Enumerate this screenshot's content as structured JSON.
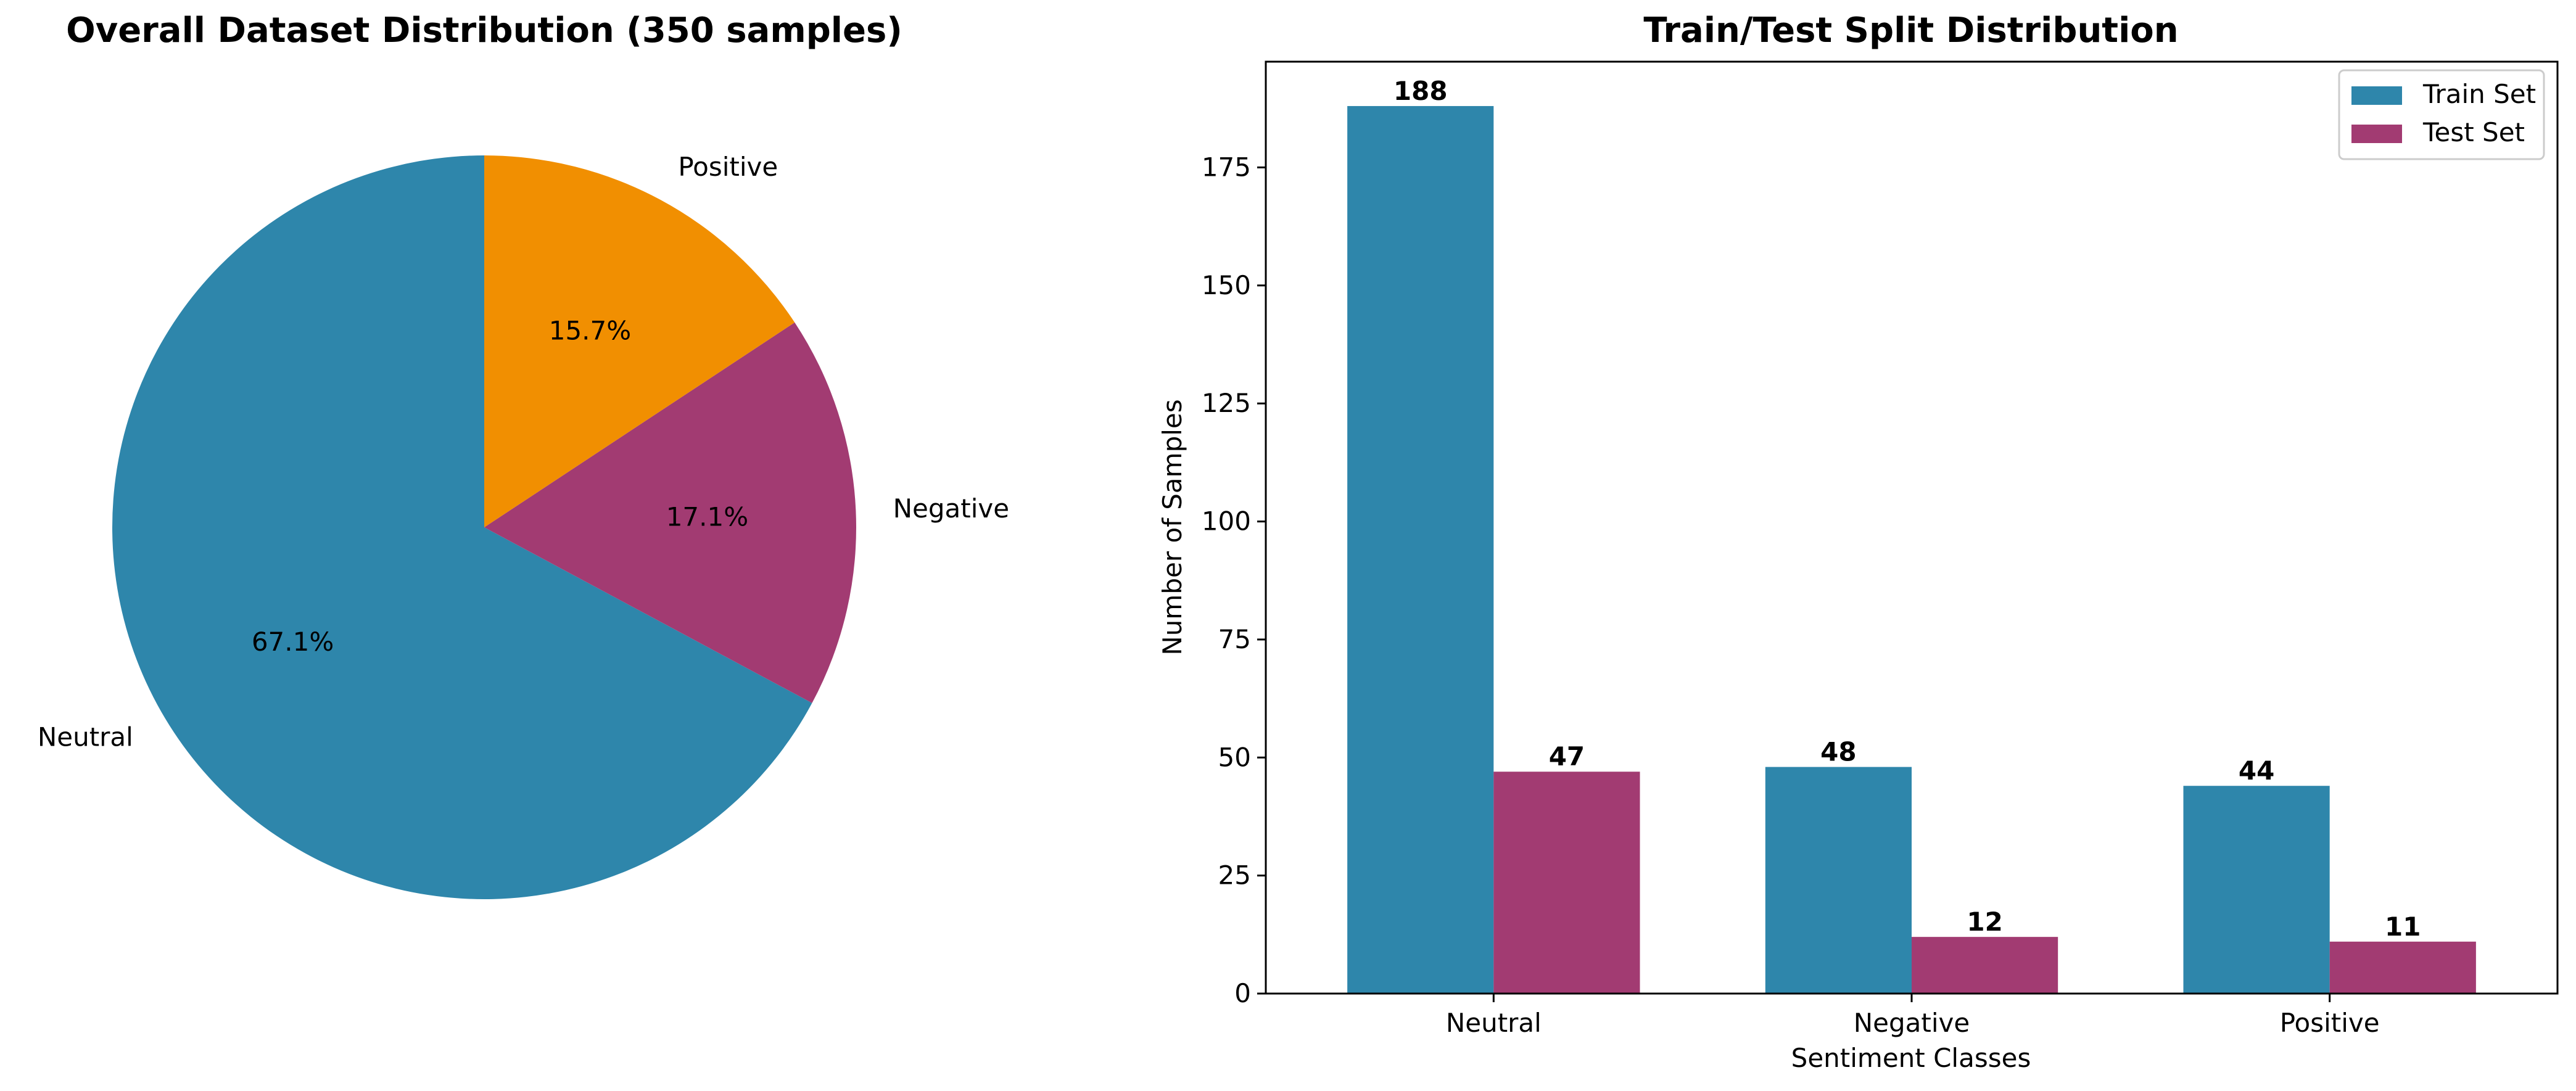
{
  "colors": {
    "neutral": "#2E86AB",
    "negative": "#A23B72",
    "positive": "#F18F01",
    "train": "#2E86AB",
    "test": "#A23B72"
  },
  "chart_data": [
    {
      "type": "pie",
      "title": "Overall Dataset Distribution (350 samples)",
      "labels": [
        "Neutral",
        "Negative",
        "Positive"
      ],
      "values": [
        67.1,
        17.1,
        15.7
      ],
      "pct_labels": [
        "67.1%",
        "17.1%",
        "15.7%"
      ],
      "start_angle": 90,
      "direction": "counterclockwise"
    },
    {
      "type": "bar",
      "title": "Train/Test Split Distribution",
      "xlabel": "Sentiment Classes",
      "ylabel": "Number of Samples",
      "categories": [
        "Neutral",
        "Negative",
        "Positive"
      ],
      "series": [
        {
          "name": "Train Set",
          "values": [
            188,
            48,
            44
          ]
        },
        {
          "name": "Test Set",
          "values": [
            47,
            12,
            11
          ]
        }
      ],
      "ylim": [
        0,
        197.4
      ],
      "yticks": [
        0,
        25,
        50,
        75,
        100,
        125,
        150,
        175
      ],
      "legend": "top-right",
      "grid": false
    }
  ]
}
